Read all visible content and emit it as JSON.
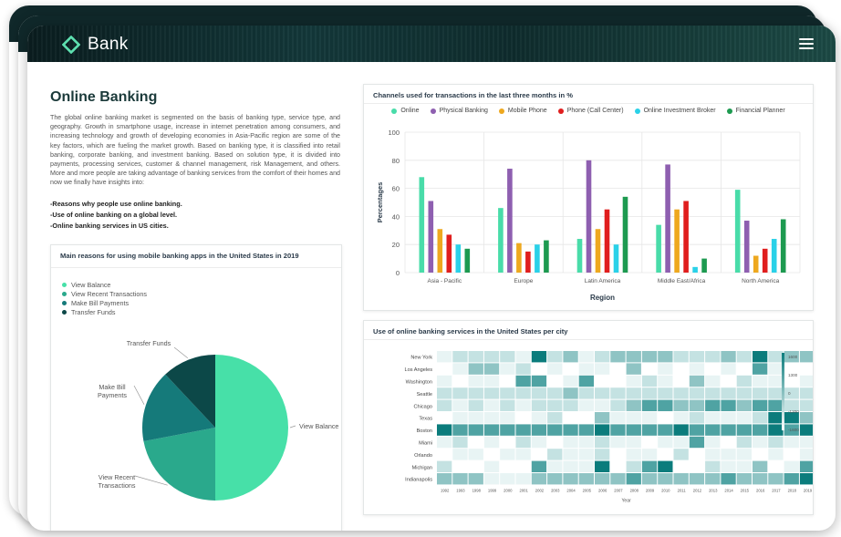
{
  "app": {
    "brand": "Bank"
  },
  "page": {
    "title": "Online Banking",
    "intro": "The global online banking market is segmented on the basis of banking type, service type, and geography. Growth in smartphone usage, increase in internet penetration among consumers, and increasing technology and growth of developing economies in Asia-Pacific region are some of the key factors, which are fueling the market growth.  Based on banking type, it is classified into retail banking, corporate banking, and investment banking. Based on solution type, it is divided into payments, processing services, customer & channel management, risk Management, and others. More and more people are taking advantage of banking services from the comfort of their homes and now we finally have insights into:",
    "bullets": [
      "-Reasons why people use online banking.",
      "-Use of online banking on a global level.",
      "-Online banking services in US cities."
    ]
  },
  "colors": {
    "pie": [
      "#47e0a8",
      "#2aa98c",
      "#157a7a",
      "#0c4848"
    ],
    "channels": [
      "#49dca9",
      "#8e5fb0",
      "#eea81f",
      "#e01e1e",
      "#2ad1e8",
      "#1d9a50"
    ]
  },
  "chart_data": [
    {
      "type": "pie",
      "title": "Main reasons for using mobile banking apps in the United States in 2019",
      "labels": [
        "View Balance",
        "View Recent Transactions",
        "Make Bill Payments",
        "Transfer Funds"
      ],
      "callouts": [
        "View Balance",
        "View Recent\nTransactions",
        "Make Bill\nPayments",
        "Transfer Funds"
      ],
      "values": [
        50,
        22,
        16,
        12
      ],
      "legend": "top-left"
    },
    {
      "type": "bar",
      "title": "Channels used for transactions in the last three months in %",
      "categories": [
        "Asia - Pacific",
        "Europe",
        "Latin America",
        "Middle East/Africa",
        "North America"
      ],
      "series": [
        {
          "name": "Online",
          "values": [
            68,
            46,
            24,
            34,
            59
          ]
        },
        {
          "name": "Physical Banking",
          "values": [
            51,
            74,
            80,
            77,
            37
          ]
        },
        {
          "name": "Mobile Phone",
          "values": [
            31,
            21,
            31,
            45,
            12
          ]
        },
        {
          "name": "Phone (Call Center)",
          "values": [
            27,
            15,
            45,
            51,
            17
          ]
        },
        {
          "name": "Online Investment Broker",
          "values": [
            20,
            20,
            20,
            4,
            24
          ]
        },
        {
          "name": "Financial Planner",
          "values": [
            17,
            23,
            54,
            10,
            38
          ]
        }
      ],
      "xlabel": "Region",
      "ylabel": "Percentages",
      "ylim": [
        0,
        100
      ],
      "yticks": [
        0,
        20,
        40,
        60,
        80,
        100
      ],
      "grid": true,
      "legend": "top"
    },
    {
      "type": "heatmap",
      "title": "Use of online banking services in the United States per city",
      "xlabel": "Year",
      "x": [
        "1992",
        "1993",
        "1998",
        "1999",
        "2000",
        "2001",
        "2002",
        "2003",
        "2004",
        "2005",
        "2006",
        "2007",
        "2008",
        "2009",
        "2010",
        "2011",
        "2012",
        "2013",
        "2014",
        "2015",
        "2016",
        "2017",
        "2018",
        "2019"
      ],
      "y": [
        "New York",
        "Los Angeles",
        "Washington",
        "Seattle",
        "Chicago",
        "Texas",
        "Boston",
        "Miami",
        "Orlando",
        "Michigan",
        "Indianapolis"
      ],
      "values": [
        [
          1,
          2,
          2,
          2,
          2,
          1,
          5,
          2,
          3,
          1,
          2,
          3,
          3,
          3,
          3,
          2,
          2,
          2,
          3,
          2,
          5,
          2,
          3,
          3
        ],
        [
          0,
          1,
          3,
          3,
          1,
          2,
          0,
          1,
          0,
          1,
          1,
          0,
          3,
          0,
          1,
          0,
          1,
          0,
          1,
          0,
          4,
          1,
          0,
          0
        ],
        [
          1,
          0,
          1,
          1,
          0,
          4,
          4,
          0,
          1,
          4,
          0,
          0,
          1,
          2,
          1,
          0,
          3,
          1,
          0,
          2,
          1,
          1,
          0,
          1
        ],
        [
          2,
          2,
          2,
          2,
          2,
          2,
          2,
          2,
          3,
          2,
          2,
          2,
          2,
          2,
          2,
          2,
          2,
          2,
          2,
          2,
          2,
          2,
          2,
          2
        ],
        [
          2,
          1,
          2,
          1,
          2,
          1,
          2,
          2,
          2,
          1,
          1,
          2,
          3,
          4,
          4,
          3,
          3,
          4,
          4,
          3,
          4,
          4,
          2,
          2
        ],
        [
          0,
          1,
          1,
          1,
          1,
          0,
          1,
          2,
          0,
          0,
          3,
          1,
          1,
          1,
          0,
          1,
          2,
          1,
          1,
          1,
          2,
          5,
          5,
          3
        ],
        [
          5,
          4,
          4,
          4,
          4,
          4,
          4,
          4,
          4,
          4,
          5,
          4,
          4,
          4,
          4,
          5,
          4,
          4,
          4,
          4,
          4,
          5,
          4,
          5
        ],
        [
          1,
          2,
          0,
          1,
          0,
          2,
          1,
          0,
          1,
          1,
          2,
          1,
          1,
          0,
          1,
          1,
          4,
          1,
          0,
          2,
          1,
          2,
          1,
          1
        ],
        [
          0,
          1,
          1,
          0,
          1,
          1,
          0,
          2,
          1,
          1,
          2,
          0,
          1,
          1,
          0,
          2,
          0,
          1,
          1,
          1,
          0,
          1,
          0,
          1
        ],
        [
          2,
          0,
          0,
          1,
          0,
          0,
          4,
          1,
          1,
          1,
          5,
          0,
          2,
          4,
          5,
          0,
          0,
          2,
          1,
          1,
          3,
          0,
          1,
          4
        ],
        [
          3,
          3,
          3,
          1,
          1,
          1,
          3,
          3,
          3,
          3,
          3,
          3,
          4,
          3,
          3,
          3,
          3,
          3,
          4,
          3,
          3,
          3,
          4,
          5
        ]
      ],
      "colorbar_ticks": [
        "1600",
        "1300",
        "0",
        "-1200",
        "-1600"
      ]
    }
  ]
}
